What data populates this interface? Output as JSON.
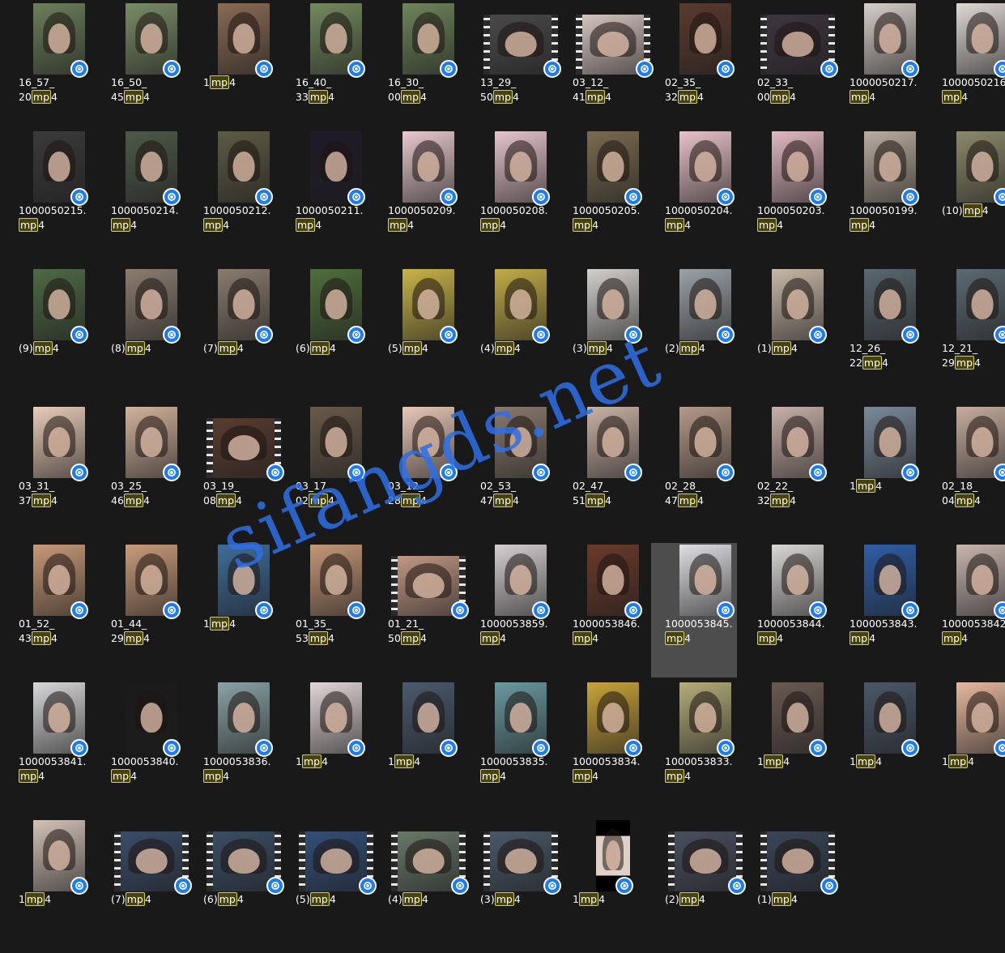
{
  "watermark": "sifangds.net",
  "badge_icon": "video-player-icon",
  "colors": {
    "background": "#191919",
    "ext_highlight": "#48430c",
    "ext_border": "#d6cf45",
    "badge": "#1e7bf0",
    "selected": "#4d4d4d"
  },
  "rows": [
    [
      {
        "pre": "16_57_",
        "mid": "20",
        "ext": "mp4",
        "style": "portrait",
        "tone": "#6b7f5a"
      },
      {
        "pre": "16_50_",
        "mid": "45",
        "ext": "mp4",
        "style": "portrait",
        "tone": "#7a8c66"
      },
      {
        "pre": "1",
        "mid": "",
        "ext": "mp4",
        "style": "portrait",
        "tone": "#8a6b55"
      },
      {
        "pre": "16_40_",
        "mid": "33",
        "ext": "mp4",
        "style": "portrait",
        "tone": "#738a5e"
      },
      {
        "pre": "16_30_",
        "mid": "00",
        "ext": "mp4",
        "style": "portrait",
        "tone": "#6e855a"
      },
      {
        "pre": "13_29_",
        "mid": "50",
        "ext": "mp4",
        "style": "wide film",
        "tone": "#4a4a4a"
      },
      {
        "pre": "03_12_",
        "mid": "41",
        "ext": "mp4",
        "style": "wide film",
        "tone": "#d9c7c2"
      },
      {
        "pre": "02_35_",
        "mid": "32",
        "ext": "mp4",
        "style": "portrait",
        "tone": "#5a3a2e"
      },
      {
        "pre": "02_33_",
        "mid": "00",
        "ext": "mp4",
        "style": "wide film",
        "tone": "#3e3540"
      },
      {
        "pre": "1000050217.",
        "mid": "",
        "ext": "mp4",
        "style": "portrait",
        "tone": "#d8cfc8"
      },
      {
        "pre": "1000050216.",
        "mid": "",
        "ext": "mp4",
        "style": "portrait",
        "tone": "#e0dad6"
      }
    ],
    [
      {
        "pre": "1000050215.",
        "mid": "",
        "ext": "mp4",
        "style": "portrait",
        "tone": "#3a3a3a"
      },
      {
        "pre": "1000050214.",
        "mid": "",
        "ext": "mp4",
        "style": "portrait",
        "tone": "#4d5a48"
      },
      {
        "pre": "1000050212.",
        "mid": "",
        "ext": "mp4",
        "style": "portrait",
        "tone": "#5d5a44"
      },
      {
        "pre": "1000050211.",
        "mid": "",
        "ext": "mp4",
        "style": "portrait",
        "tone": "#1e1a28"
      },
      {
        "pre": "1000050209.",
        "mid": "",
        "ext": "mp4",
        "style": "portrait",
        "tone": "#e8c9cf"
      },
      {
        "pre": "1000050208.",
        "mid": "",
        "ext": "mp4",
        "style": "portrait",
        "tone": "#e6c5cd"
      },
      {
        "pre": "1000050205.",
        "mid": "",
        "ext": "mp4",
        "style": "portrait",
        "tone": "#7a6b50"
      },
      {
        "pre": "1000050204.",
        "mid": "",
        "ext": "mp4",
        "style": "portrait",
        "tone": "#e8c3c8"
      },
      {
        "pre": "1000050203.",
        "mid": "",
        "ext": "mp4",
        "style": "portrait",
        "tone": "#e2b9c0"
      },
      {
        "pre": "1000050199.",
        "mid": "",
        "ext": "mp4",
        "style": "portrait",
        "tone": "#b9ad9e"
      },
      {
        "pre": "(10)",
        "mid": "",
        "ext": "mp4",
        "style": "portrait",
        "tone": "#8c8a6a"
      }
    ],
    [
      {
        "pre": "(9)",
        "mid": "",
        "ext": "mp4",
        "style": "portrait",
        "tone": "#4e6a45"
      },
      {
        "pre": "(8)",
        "mid": "",
        "ext": "mp4",
        "style": "portrait",
        "tone": "#8c7e70"
      },
      {
        "pre": "(7)",
        "mid": "",
        "ext": "mp4",
        "style": "portrait",
        "tone": "#8a7c6e"
      },
      {
        "pre": "(6)",
        "mid": "",
        "ext": "mp4",
        "style": "portrait",
        "tone": "#4f6e3c"
      },
      {
        "pre": "(5)",
        "mid": "",
        "ext": "mp4",
        "style": "portrait",
        "tone": "#c9b44a"
      },
      {
        "pre": "(4)",
        "mid": "",
        "ext": "mp4",
        "style": "portrait",
        "tone": "#c2ad48"
      },
      {
        "pre": "(3)",
        "mid": "",
        "ext": "mp4",
        "style": "portrait",
        "tone": "#d4d0cc"
      },
      {
        "pre": "(2)",
        "mid": "",
        "ext": "mp4",
        "style": "portrait",
        "tone": "#9aa2a8"
      },
      {
        "pre": "(1)",
        "mid": "",
        "ext": "mp4",
        "style": "portrait",
        "tone": "#c7b9a8"
      },
      {
        "pre": "12_26_",
        "mid": "22",
        "ext": "mp4",
        "style": "portrait",
        "tone": "#5a6870"
      },
      {
        "pre": "12_21_",
        "mid": "29",
        "ext": "mp4",
        "style": "portrait",
        "tone": "#5b6a72"
      }
    ],
    [
      {
        "pre": "03_31_",
        "mid": "37",
        "ext": "mp4",
        "style": "portrait",
        "tone": "#e8cdb9"
      },
      {
        "pre": "03_25_",
        "mid": "46",
        "ext": "mp4",
        "style": "portrait",
        "tone": "#d3b39d"
      },
      {
        "pre": "03_19_",
        "mid": "08",
        "ext": "mp4",
        "style": "wide film",
        "tone": "#5a3c30"
      },
      {
        "pre": "03_17_",
        "mid": "02",
        "ext": "mp4",
        "style": "portrait",
        "tone": "#6a5a4a"
      },
      {
        "pre": "03_12_",
        "mid": "28",
        "ext": "mp4",
        "style": "portrait",
        "tone": "#e7c8b6"
      },
      {
        "pre": "02_53_",
        "mid": "47",
        "ext": "mp4",
        "style": "portrait",
        "tone": "#8a7a6e"
      },
      {
        "pre": "02_47_",
        "mid": "51",
        "ext": "mp4",
        "style": "portrait",
        "tone": "#c9b2a5"
      },
      {
        "pre": "02_28_",
        "mid": "47",
        "ext": "mp4",
        "style": "portrait",
        "tone": "#b49a8a"
      },
      {
        "pre": "02_22_",
        "mid": "32",
        "ext": "mp4",
        "style": "portrait",
        "tone": "#c8b0a8"
      },
      {
        "pre": "1",
        "mid": "",
        "ext": "mp4",
        "style": "portrait",
        "tone": "#7a8a9a"
      },
      {
        "pre": "02_18_",
        "mid": "04",
        "ext": "mp4",
        "style": "portrait",
        "tone": "#c7ad9f"
      }
    ],
    [
      {
        "pre": "01_52_",
        "mid": "43",
        "ext": "mp4",
        "style": "portrait",
        "tone": "#c89a78"
      },
      {
        "pre": "01_44_",
        "mid": "29",
        "ext": "mp4",
        "style": "portrait",
        "tone": "#c99c7b"
      },
      {
        "pre": "1",
        "mid": "",
        "ext": "mp4",
        "style": "portrait",
        "tone": "#3f6d9a"
      },
      {
        "pre": "01_35_",
        "mid": "53",
        "ext": "mp4",
        "style": "portrait",
        "tone": "#c59878"
      },
      {
        "pre": "01_21_",
        "mid": "50",
        "ext": "mp4",
        "style": "wide film",
        "tone": "#c49a86"
      },
      {
        "pre": "1000053859.",
        "mid": "",
        "ext": "mp4",
        "style": "portrait",
        "tone": "#d6cfd2"
      },
      {
        "pre": "1000053846.",
        "mid": "",
        "ext": "mp4",
        "style": "portrait",
        "tone": "#6a3a2a"
      },
      {
        "pre": "1000053845.",
        "mid": "",
        "ext": "mp4",
        "style": "portrait",
        "tone": "#e0dfe4",
        "selected": true
      },
      {
        "pre": "1000053844.",
        "mid": "",
        "ext": "mp4",
        "style": "portrait",
        "tone": "#dad8d6"
      },
      {
        "pre": "1000053843.",
        "mid": "",
        "ext": "mp4",
        "style": "portrait",
        "tone": "#2f5ea8"
      },
      {
        "pre": "1000053842.",
        "mid": "",
        "ext": "mp4",
        "style": "portrait",
        "tone": "#c8b6ae"
      }
    ],
    [
      {
        "pre": "1000053841.",
        "mid": "",
        "ext": "mp4",
        "style": "portrait",
        "tone": "#d8d8da"
      },
      {
        "pre": "1000053840.",
        "mid": "",
        "ext": "mp4",
        "style": "portrait",
        "tone": "#1a1a1a"
      },
      {
        "pre": "1000053836.",
        "mid": "",
        "ext": "mp4",
        "style": "portrait",
        "tone": "#8aa2a6"
      },
      {
        "pre": "1",
        "mid": "",
        "ext": "mp4",
        "style": "portrait",
        "tone": "#e2d6d8"
      },
      {
        "pre": "1",
        "mid": "",
        "ext": "mp4",
        "style": "portrait",
        "tone": "#4a5a6e"
      },
      {
        "pre": "1000053835.",
        "mid": "",
        "ext": "mp4",
        "style": "portrait",
        "tone": "#6a9aa0"
      },
      {
        "pre": "1000053834.",
        "mid": "",
        "ext": "mp4",
        "style": "portrait",
        "tone": "#c9a43a"
      },
      {
        "pre": "1000053833.",
        "mid": "",
        "ext": "mp4",
        "style": "portrait",
        "tone": "#b4ad7a"
      },
      {
        "pre": "1",
        "mid": "",
        "ext": "mp4",
        "style": "portrait",
        "tone": "#6a5a52"
      },
      {
        "pre": "1",
        "mid": "",
        "ext": "mp4",
        "style": "portrait",
        "tone": "#4a5868"
      },
      {
        "pre": "1",
        "mid": "",
        "ext": "mp4",
        "style": "portrait",
        "tone": "#e8b8a0"
      }
    ],
    [
      {
        "pre": "1",
        "mid": "",
        "ext": "mp4",
        "style": "portrait",
        "tone": "#d2c2b6"
      },
      {
        "pre": "(7)",
        "mid": "",
        "ext": "mp4",
        "style": "wide film",
        "tone": "#3a4e6a"
      },
      {
        "pre": "(6)",
        "mid": "",
        "ext": "mp4",
        "style": "wide film",
        "tone": "#3b4f68"
      },
      {
        "pre": "(5)",
        "mid": "",
        "ext": "mp4",
        "style": "wide film",
        "tone": "#34507a"
      },
      {
        "pre": "(4)",
        "mid": "",
        "ext": "mp4",
        "style": "wide film",
        "tone": "#6a7a6a"
      },
      {
        "pre": "(3)",
        "mid": "",
        "ext": "mp4",
        "style": "wide film",
        "tone": "#4a5a6a"
      },
      {
        "pre": "1",
        "mid": "",
        "ext": "mp4",
        "style": "portrait narrow",
        "tone": "#e0d0c8"
      },
      {
        "pre": "(2)",
        "mid": "",
        "ext": "mp4",
        "style": "wide film",
        "tone": "#4a5060"
      },
      {
        "pre": "(1)",
        "mid": "",
        "ext": "mp4",
        "style": "wide film",
        "tone": "#3a4658"
      }
    ]
  ]
}
